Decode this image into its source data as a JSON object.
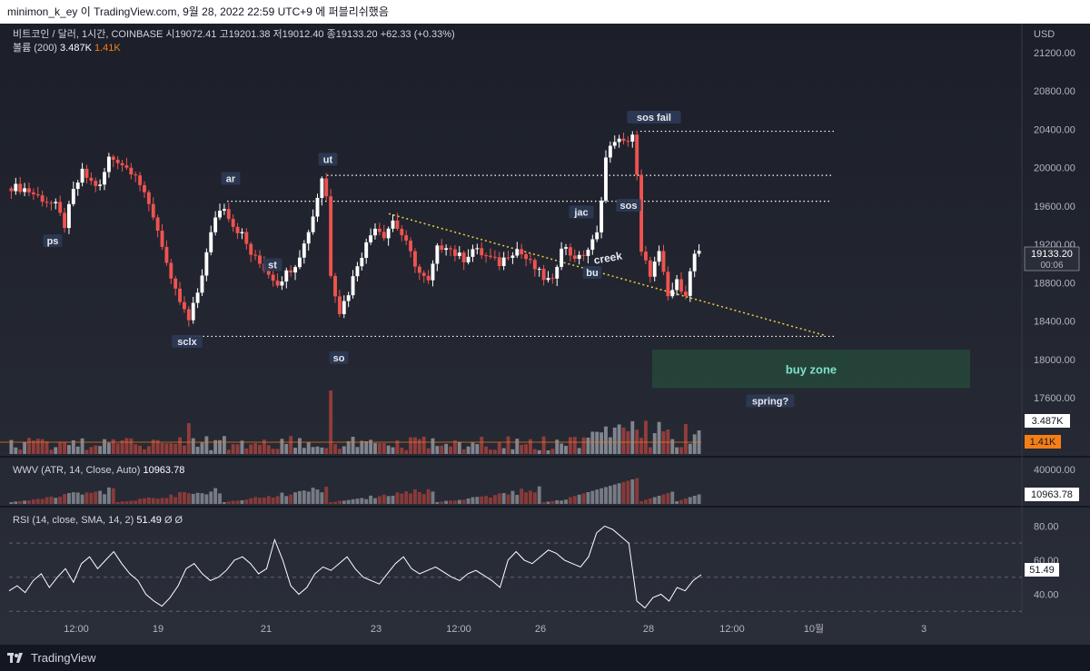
{
  "header": {
    "publish_text": "minimon_k_ey 이 TradingView.com, 9월 28, 2022 22:59 UTC+9 에 퍼블리쉬했음"
  },
  "legend": {
    "symbol": "비트코인 / 달러, 1시간, COINBASE",
    "o_label": "시",
    "o": "19072.41",
    "h_label": "고",
    "h": "19201.38",
    "l_label": "저",
    "l": "19012.40",
    "c_label": "종",
    "c": "19133.20",
    "change": "+62.33 (+0.33%)",
    "volume_label": "볼륨 (200)",
    "volume_value": "3.487K",
    "volume_ma": "1.41K"
  },
  "axis": {
    "currency": "USD",
    "price_ticks": [
      "21200.00",
      "20800.00",
      "20400.00",
      "20000.00",
      "19600.00",
      "19200.00",
      "18800.00",
      "18400.00",
      "18000.00",
      "17600.00"
    ],
    "last_price": "19133.20",
    "countdown": "00:06",
    "volume_badge": "3.487K",
    "volume_ma_badge": "1.41K",
    "time_ticks": [
      "12:00",
      "19",
      "21",
      "23",
      "12:00",
      "26",
      "28",
      "12:00",
      "10월",
      "3"
    ]
  },
  "annotations": {
    "ps": "ps",
    "sclx": "sclx",
    "ar": "ar",
    "st": "st",
    "ut": "ut",
    "so": "so",
    "jac": "jac",
    "bu": "bu",
    "sos": "sos",
    "sos_fail": "sos fail",
    "creek": "creek",
    "buy_zone": "buy zone",
    "spring": "spring?"
  },
  "wwv": {
    "title": "WWV (ATR, 14, Close, Auto)",
    "value": "10963.78",
    "tick": "40000.00",
    "badge": "10963.78"
  },
  "rsi": {
    "title": "RSI (14, close, SMA, 14, 2)",
    "value": "51.49",
    "extra": "Ø Ø",
    "ticks": [
      "80.00",
      "60.00",
      "40.00"
    ],
    "badge": "51.49"
  },
  "footer": {
    "brand": "TradingView"
  },
  "colors": {
    "up": "#ffffff",
    "down": "#ef5350",
    "volume_ma": "#f57f17",
    "rsi": "#ffffff",
    "buy_zone": "#2a4a3a",
    "trendline": "#f0d040"
  },
  "chart_data": {
    "type": "candlestick",
    "title": "비트코인 / 달러, 1시간, COINBASE",
    "ylabel": "USD",
    "ylim": [
      17400,
      21400
    ],
    "close_path": [
      [
        0,
        19800
      ],
      [
        3,
        19780
      ],
      [
        6,
        19700
      ],
      [
        8,
        19650
      ],
      [
        10,
        19600
      ],
      [
        12,
        19400
      ],
      [
        14,
        19750
      ],
      [
        16,
        19950
      ],
      [
        18,
        19850
      ],
      [
        20,
        19800
      ],
      [
        22,
        20100
      ],
      [
        24,
        20080
      ],
      [
        26,
        20000
      ],
      [
        28,
        19950
      ],
      [
        30,
        19700
      ],
      [
        32,
        19500
      ],
      [
        34,
        19200
      ],
      [
        36,
        18800
      ],
      [
        38,
        18600
      ],
      [
        40,
        18400
      ],
      [
        42,
        18700
      ],
      [
        44,
        19100
      ],
      [
        46,
        19500
      ],
      [
        48,
        19600
      ],
      [
        50,
        19400
      ],
      [
        52,
        19300
      ],
      [
        54,
        19100
      ],
      [
        56,
        19000
      ],
      [
        58,
        18900
      ],
      [
        60,
        18800
      ],
      [
        62,
        18900
      ],
      [
        64,
        19000
      ],
      [
        66,
        19200
      ],
      [
        68,
        19500
      ],
      [
        70,
        19900
      ],
      [
        71,
        19700
      ],
      [
        72,
        18900
      ],
      [
        74,
        18500
      ],
      [
        76,
        18700
      ],
      [
        78,
        19000
      ],
      [
        80,
        19200
      ],
      [
        82,
        19400
      ],
      [
        84,
        19300
      ],
      [
        86,
        19450
      ],
      [
        88,
        19300
      ],
      [
        90,
        19100
      ],
      [
        92,
        18900
      ],
      [
        94,
        18800
      ],
      [
        96,
        19150
      ],
      [
        98,
        19200
      ],
      [
        100,
        19100
      ],
      [
        102,
        19050
      ],
      [
        104,
        19150
      ],
      [
        106,
        19100
      ],
      [
        108,
        19050
      ],
      [
        110,
        19000
      ],
      [
        112,
        19100
      ],
      [
        114,
        19150
      ],
      [
        116,
        19050
      ],
      [
        118,
        18950
      ],
      [
        120,
        18850
      ],
      [
        122,
        18800
      ],
      [
        124,
        19200
      ],
      [
        126,
        19100
      ],
      [
        128,
        19050
      ],
      [
        130,
        19150
      ],
      [
        132,
        19300
      ],
      [
        134,
        20100
      ],
      [
        136,
        20300
      ],
      [
        138,
        20250
      ],
      [
        140,
        20350
      ],
      [
        141,
        19900
      ],
      [
        142,
        19100
      ],
      [
        144,
        18900
      ],
      [
        146,
        19100
      ],
      [
        148,
        18650
      ],
      [
        150,
        18800
      ],
      [
        152,
        18700
      ],
      [
        154,
        19100
      ],
      [
        155,
        19133
      ]
    ],
    "levels": {
      "ar": 19650,
      "ut": 19920,
      "sos_fail": 20380,
      "support": 18240
    },
    "creek_line": [
      [
        19520,
        "23"
      ],
      [
        18250,
        "after 28"
      ]
    ],
    "buy_zone": [
      17700,
      18100
    ],
    "volume_ma": 1410,
    "volume_last": 3487,
    "wwv_last": 10963.78,
    "rsi": {
      "series": [
        42,
        45,
        41,
        48,
        52,
        44,
        50,
        55,
        47,
        58,
        62,
        55,
        60,
        65,
        58,
        52,
        48,
        40,
        36,
        33,
        38,
        45,
        55,
        58,
        52,
        48,
        50,
        54,
        60,
        62,
        58,
        52,
        55,
        72,
        60,
        45,
        40,
        44,
        52,
        56,
        54,
        58,
        62,
        55,
        50,
        48,
        46,
        52,
        58,
        62,
        55,
        52,
        54,
        56,
        53,
        50,
        48,
        52,
        54,
        51,
        48,
        44,
        60,
        65,
        60,
        58,
        62,
        66,
        64,
        60,
        58,
        56,
        62,
        76,
        80,
        78,
        74,
        70,
        36,
        32,
        38,
        40,
        36,
        44,
        42,
        48,
        51.49
      ],
      "ylim": [
        20,
        85
      ],
      "bands": [
        30,
        50,
        70
      ]
    }
  }
}
